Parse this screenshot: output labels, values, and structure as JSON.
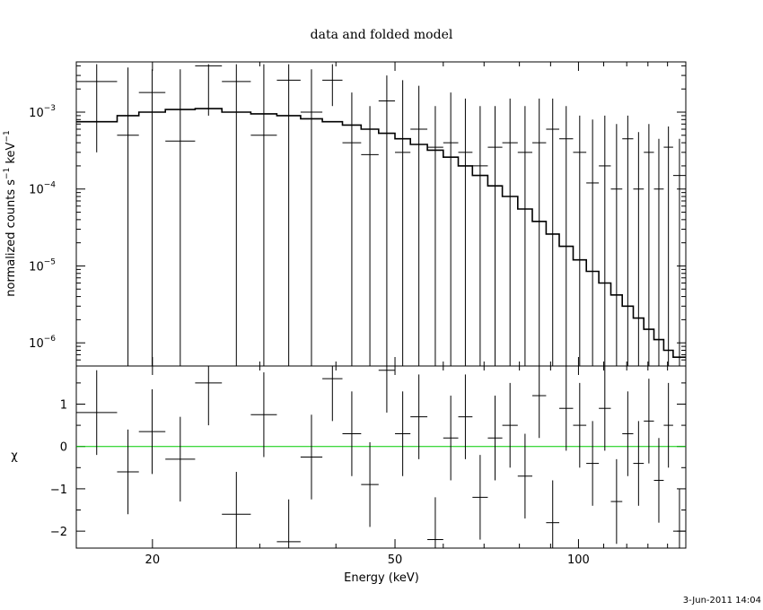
{
  "title": "data and folded model",
  "timestamp": "3-Jun-2011 14:04",
  "chart_data": [
    {
      "type": "scatter",
      "panel": "top",
      "xscale": "log",
      "yscale": "log",
      "xlim": [
        15,
        150
      ],
      "ylim": [
        5e-07,
        0.0045
      ],
      "ylabel": "normalized counts s$^{-1}$ keV$^{-1}$",
      "ylabel_text": "normalized counts s",
      "ylabel_sup1": "−1",
      "ylabel_mid": " keV",
      "ylabel_sup2": "−1",
      "yticks": [
        {
          "value": 1e-06,
          "base": "10",
          "exp": "−6"
        },
        {
          "value": 1e-05,
          "base": "10",
          "exp": "−5"
        },
        {
          "value": 0.0001,
          "base": "10",
          "exp": "−4"
        },
        {
          "value": 0.001,
          "base": "10",
          "exp": "−3"
        }
      ],
      "series": [
        {
          "kind": "data-with-errors",
          "x_lo": [
            15.0,
            17.5,
            19.0,
            21.0,
            23.5,
            26.0,
            29.0,
            32.0,
            35.0,
            38.0,
            41.0,
            44.0,
            47.0,
            50.0,
            53.0,
            56.5,
            60.0,
            63.5,
            67.0,
            71.0,
            75.0,
            79.5,
            84.0,
            88.5,
            93.0,
            98.0,
            103.0,
            108.0,
            113.0,
            118.0,
            123.0,
            128.0,
            133.0,
            138.0,
            143.0
          ],
          "x_hi": [
            17.5,
            19.0,
            21.0,
            23.5,
            26.0,
            29.0,
            32.0,
            35.0,
            38.0,
            41.0,
            44.0,
            47.0,
            50.0,
            53.0,
            56.5,
            60.0,
            63.5,
            67.0,
            71.0,
            75.0,
            79.5,
            84.0,
            88.5,
            93.0,
            98.0,
            103.0,
            108.0,
            113.0,
            118.0,
            123.0,
            128.0,
            133.0,
            138.0,
            143.0,
            150.0
          ],
          "y": [
            0.0025,
            0.0005,
            0.0018,
            0.00042,
            0.004,
            0.0025,
            0.0005,
            0.0026,
            0.001,
            0.0026,
            0.0004,
            0.00028,
            0.0014,
            0.0003,
            0.0006,
            0.00035,
            0.0004,
            0.0003,
            0.0002,
            0.00035,
            0.0004,
            0.0003,
            0.0004,
            0.0006,
            0.00045,
            0.0003,
            0.00012,
            0.0002,
            0.0001,
            0.00045,
            0.0001,
            0.0003,
            0.0001,
            0.00035,
            0.00015
          ],
          "y_hi": [
            0.0042,
            0.0038,
            0.0036,
            0.0036,
            0.0042,
            0.0042,
            0.0042,
            0.0042,
            0.0036,
            0.0042,
            0.0018,
            0.0012,
            0.003,
            0.0026,
            0.0022,
            0.0012,
            0.0018,
            0.0015,
            0.0012,
            0.0012,
            0.0015,
            0.0012,
            0.0015,
            0.0015,
            0.0012,
            0.0009,
            0.0008,
            0.0009,
            0.0007,
            0.0009,
            0.00055,
            0.0007,
            0.00045,
            0.00065,
            0.00045
          ],
          "y_lo": [
            0.0003,
            5e-07,
            5e-07,
            5e-07,
            0.0009,
            5e-07,
            5e-07,
            5e-07,
            5e-07,
            0.0012,
            5e-07,
            5e-07,
            5e-07,
            5e-07,
            5e-07,
            5e-07,
            5e-07,
            5e-07,
            5e-07,
            5e-07,
            5e-07,
            5e-07,
            5e-07,
            5e-07,
            5e-07,
            5e-07,
            5e-07,
            5e-07,
            5e-07,
            5e-07,
            5e-07,
            5e-07,
            5e-07,
            5e-07,
            5e-07
          ]
        },
        {
          "kind": "model-step",
          "x_edges": [
            15.0,
            17.5,
            19.0,
            21.0,
            23.5,
            26.0,
            29.0,
            32.0,
            35.0,
            38.0,
            41.0,
            44.0,
            47.0,
            50.0,
            53.0,
            56.5,
            60.0,
            63.5,
            67.0,
            71.0,
            75.0,
            79.5,
            84.0,
            88.5,
            93.0,
            98.0,
            103.0,
            108.0,
            113.0,
            118.0,
            123.0,
            128.0,
            133.0,
            138.0,
            143.0,
            150.0
          ],
          "y": [
            0.00075,
            0.0009,
            0.001,
            0.00108,
            0.00111,
            0.001,
            0.00095,
            0.0009,
            0.00082,
            0.00075,
            0.00068,
            0.0006,
            0.00053,
            0.00045,
            0.00038,
            0.00032,
            0.00026,
            0.0002,
            0.00015,
            0.00011,
            8e-05,
            5.5e-05,
            3.8e-05,
            2.6e-05,
            1.8e-05,
            1.2e-05,
            8.5e-06,
            6e-06,
            4.2e-06,
            3e-06,
            2.1e-06,
            1.5e-06,
            1.1e-06,
            8e-07,
            6.5e-07
          ]
        }
      ]
    },
    {
      "type": "scatter",
      "panel": "bottom",
      "xscale": "log",
      "xlim": [
        15,
        150
      ],
      "ylim": [
        -2.4,
        1.9
      ],
      "xlabel": "Energy (keV)",
      "ylabel": "χ",
      "xticks": [
        {
          "value": 20,
          "label": "20"
        },
        {
          "value": 50,
          "label": "50"
        },
        {
          "value": 100,
          "label": "100"
        }
      ],
      "yticks": [
        {
          "value": 1,
          "label": "1"
        },
        {
          "value": 0,
          "label": "0"
        },
        {
          "value": -1,
          "label": "−1"
        },
        {
          "value": -2,
          "label": "−2"
        }
      ],
      "zero_line_color": "#00cc00",
      "series": [
        {
          "kind": "residuals",
          "x_lo": [
            15.0,
            17.5,
            19.0,
            21.0,
            23.5,
            26.0,
            29.0,
            32.0,
            35.0,
            38.0,
            41.0,
            44.0,
            47.0,
            50.0,
            53.0,
            56.5,
            60.0,
            63.5,
            67.0,
            71.0,
            75.0,
            79.5,
            84.0,
            88.5,
            93.0,
            98.0,
            103.0,
            108.0,
            113.0,
            118.0,
            123.0,
            128.0,
            133.0,
            138.0,
            143.0
          ],
          "x_hi": [
            17.5,
            19.0,
            21.0,
            23.5,
            26.0,
            29.0,
            32.0,
            35.0,
            38.0,
            41.0,
            44.0,
            47.0,
            50.0,
            53.0,
            56.5,
            60.0,
            63.5,
            67.0,
            71.0,
            75.0,
            79.5,
            84.0,
            88.5,
            93.0,
            98.0,
            103.0,
            108.0,
            113.0,
            118.0,
            123.0,
            128.0,
            133.0,
            138.0,
            143.0,
            150.0
          ],
          "y": [
            0.8,
            -0.6,
            0.35,
            -0.3,
            1.5,
            -1.6,
            0.75,
            -2.25,
            -0.25,
            1.6,
            0.3,
            -0.9,
            1.8,
            0.3,
            0.7,
            -2.2,
            0.2,
            0.7,
            -1.2,
            0.2,
            0.5,
            -0.7,
            1.2,
            -1.8,
            0.9,
            0.5,
            -0.4,
            0.9,
            -1.3,
            0.3,
            -0.4,
            0.6,
            -0.8,
            0.5,
            -2.0
          ],
          "y_err": [
            1.0,
            1.0,
            1.0,
            1.0,
            1.0,
            1.0,
            1.0,
            1.0,
            1.0,
            1.0,
            1.0,
            1.0,
            1.0,
            1.0,
            1.0,
            1.0,
            1.0,
            1.0,
            1.0,
            1.0,
            1.0,
            1.0,
            1.0,
            1.0,
            1.0,
            1.0,
            1.0,
            1.0,
            1.0,
            1.0,
            1.0,
            1.0,
            1.0,
            1.0,
            1.0
          ]
        }
      ]
    }
  ]
}
